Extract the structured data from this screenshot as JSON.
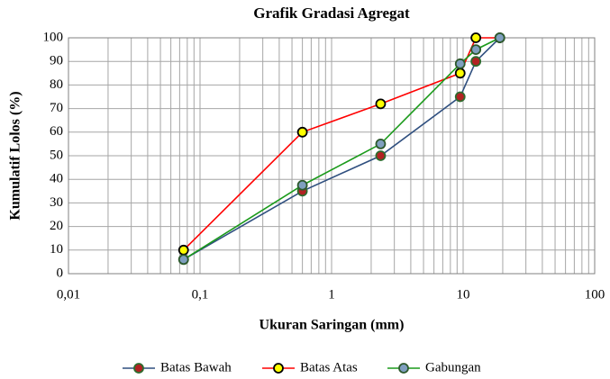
{
  "chart_data": {
    "type": "line",
    "title": "Grafik Gradasi Agregat",
    "x_label": "Ukuran Saringan (mm)",
    "y_label": "Kumulatif Lolos (%)",
    "x_log": true,
    "grid": true,
    "minor_grid": true,
    "xlim": [
      0.01,
      100
    ],
    "xticks": [
      {
        "value": 0.01,
        "label": "0,01"
      },
      {
        "value": 0.1,
        "label": "0,1"
      },
      1,
      10,
      100
    ],
    "ylim": [
      0,
      100
    ],
    "yticks": [
      0,
      10,
      20,
      30,
      40,
      50,
      60,
      70,
      80,
      90,
      100
    ],
    "legend": "bottom",
    "series": [
      {
        "name": "Batas Bawah",
        "color": "#2f4f7f",
        "marker_color": "#b22222",
        "marker_edge": "#2e6b2e",
        "x": [
          0.075,
          0.6,
          2.36,
          9.5,
          12.5,
          19
        ],
        "values": [
          6,
          35,
          50,
          75,
          90,
          100
        ]
      },
      {
        "name": "Batas Atas",
        "color": "#ff0000",
        "marker_color": "#ffff00",
        "marker_edge": "#000000",
        "x": [
          0.075,
          0.6,
          2.36,
          9.5,
          12.5,
          19
        ],
        "values": [
          10,
          60,
          72,
          85,
          100,
          100
        ]
      },
      {
        "name": "Gabungan",
        "color": "#1a9a1a",
        "marker_color": "#7f9fbf",
        "marker_edge": "#2e5a2e",
        "x": [
          0.075,
          0.6,
          2.36,
          9.5,
          12.5,
          19
        ],
        "values": [
          6,
          37.5,
          55,
          89,
          95,
          100
        ]
      }
    ]
  }
}
